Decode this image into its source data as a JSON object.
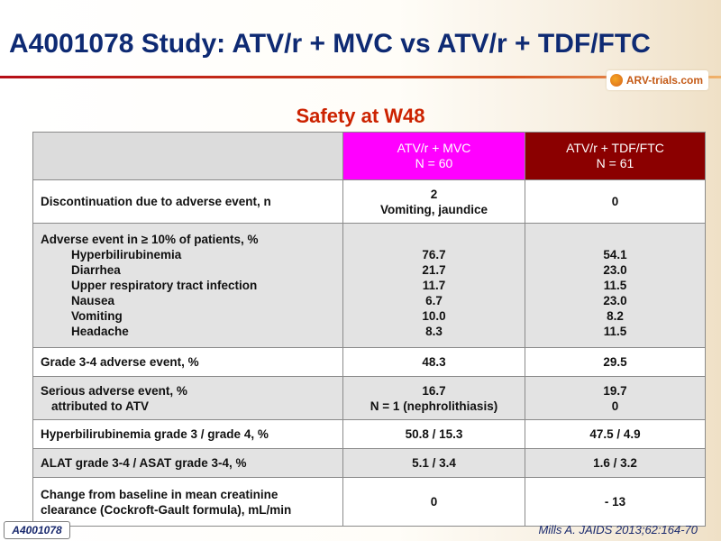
{
  "title": "A4001078 Study: ATV/r + MVC vs ATV/r + TDF/FTC",
  "logo_text": "ARV-trials.com",
  "subtitle": "Safety at W48",
  "table": {
    "header": {
      "col1": "",
      "col2": {
        "name": "ATV/r + MVC",
        "n": "N = 60"
      },
      "col3": {
        "name": "ATV/r + TDF/FTC",
        "n": "N = 61"
      }
    },
    "rows": [
      {
        "label": [
          "Discontinuation due to adverse event, n"
        ],
        "mvc": [
          "2",
          "Vomiting, jaundice"
        ],
        "tdf": [
          "0"
        ]
      },
      {
        "label": [
          "Adverse event in ≥ 10% of patients, %",
          "Hyperbilirubinemia",
          "Diarrhea",
          "Upper respiratory tract infection",
          "Nausea",
          "Vomiting",
          "Headache"
        ],
        "mvc": [
          "",
          "76.7",
          "21.7",
          "11.7",
          "6.7",
          "10.0",
          "8.3"
        ],
        "tdf": [
          "",
          "54.1",
          "23.0",
          "11.5",
          "23.0",
          "8.2",
          "11.5"
        ]
      },
      {
        "label": [
          "Grade 3-4 adverse event, %"
        ],
        "mvc": [
          "48.3"
        ],
        "tdf": [
          "29.5"
        ]
      },
      {
        "label": [
          "Serious adverse event, %",
          "attributed to ATV"
        ],
        "mvc": [
          "16.7",
          "N = 1 (nephrolithiasis)"
        ],
        "tdf": [
          "19.7",
          "0"
        ]
      },
      {
        "label": [
          "Hyperbilirubinemia grade 3 / grade 4, %"
        ],
        "mvc": [
          "50.8 / 15.3"
        ],
        "tdf": [
          "47.5 / 4.9"
        ]
      },
      {
        "label": [
          "ALAT grade 3-4 / ASAT grade 3-4, %"
        ],
        "mvc": [
          "5.1 / 3.4"
        ],
        "tdf": [
          "1.6 / 3.2"
        ]
      },
      {
        "label": [
          "Change from baseline in mean creatinine",
          "clearance (Cockroft-Gault formula), mL/min"
        ],
        "mvc": [
          "0"
        ],
        "tdf": [
          "- 13"
        ]
      }
    ]
  },
  "footer_tag": "A4001078",
  "citation": "Mills A. JAIDS 2013;62:164-70",
  "colors": {
    "title": "#0e2a73",
    "subtitle": "#cc2200",
    "mvc_header": "#ff00ff",
    "tdf_header": "#8b0000"
  }
}
